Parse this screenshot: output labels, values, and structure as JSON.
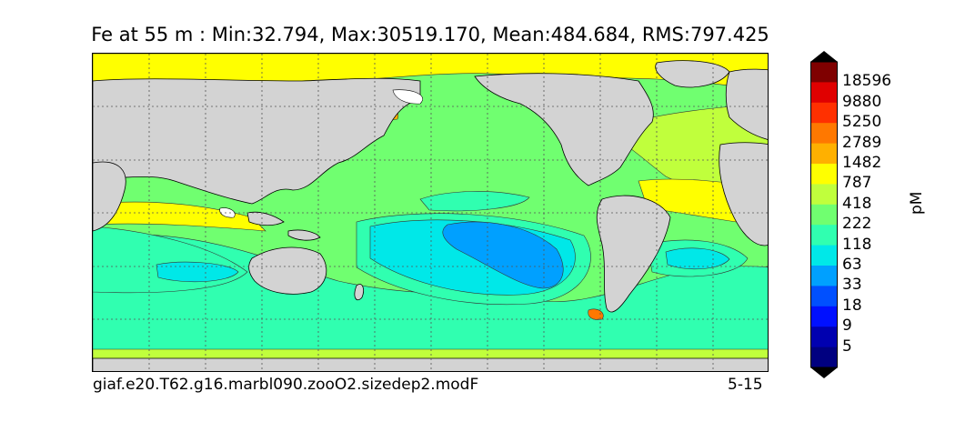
{
  "title": "Fe at 55 m : Min:32.794, Max:30519.170, Mean:484.684, RMS:797.425",
  "caption_left": "giaf.e20.T62.g16.marbl090.zooO2.sizedep2.modF",
  "caption_right": "5-15",
  "colorbar": {
    "units": "pM",
    "levels": [
      "18596",
      "9880",
      "5250",
      "2789",
      "1482",
      "787",
      "418",
      "222",
      "118",
      "63",
      "33",
      "18",
      "9",
      "5"
    ],
    "colors": [
      "#7f0000",
      "#e00000",
      "#ff3000",
      "#ff7800",
      "#ffb000",
      "#ffff00",
      "#c0ff3c",
      "#70ff70",
      "#30ffb0",
      "#00e8e8",
      "#00a0ff",
      "#0050ff",
      "#0010ff",
      "#0000b0",
      "#000080"
    ]
  },
  "map_colors": {
    "land": "#d3d3d3",
    "ocean_base": "#70ff70",
    "undefined": "#ffffff"
  }
}
